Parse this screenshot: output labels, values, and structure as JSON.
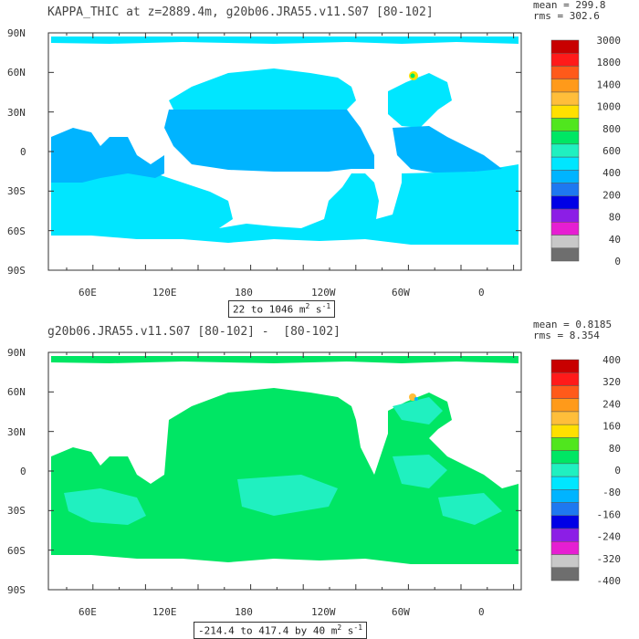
{
  "panels": [
    {
      "title": "KAPPA_THIC at z=2889.4m, g20b06.JRA55.v11.S07 [80-102]",
      "stats": {
        "mean": "mean = 299.8",
        "rms": "rms = 302.6"
      },
      "range_text": "22 to 1046 m",
      "range_units_sup": "2",
      "range_units_s": " s",
      "range_units_exp": "-1",
      "y_ticks": [
        "90N",
        "60N",
        "30N",
        "0",
        "30S",
        "60S",
        "90S"
      ],
      "x_ticks": [
        "60E",
        "120E",
        "180",
        "120W",
        "60W",
        "0"
      ],
      "colorbar_labels": [
        "3000",
        "1800",
        "1400",
        "1000",
        "800",
        "600",
        "400",
        "200",
        "80",
        "40",
        "0"
      ],
      "colorbar_colors": [
        "#c80000",
        "#ff1a1a",
        "#ff5a1a",
        "#ff9a1a",
        "#ffbe3a",
        "#ffe000",
        "#50e61e",
        "#00e664",
        "#20f0c0",
        "#00e6ff",
        "#00b4ff",
        "#1e78f0",
        "#0000e6",
        "#8c1ee6",
        "#e61ed2",
        "#c8c8c8",
        "#6e6e6e"
      ],
      "dominant_colors": {
        "ocean_main": "#00e6ff",
        "ocean_secondary": "#00b4ff",
        "contour": "#1e3c8c"
      }
    },
    {
      "title": "g20b06.JRA55.v11.S07 [80-102] -  [80-102]",
      "stats": {
        "mean": "mean = 0.8185",
        "rms": "rms = 8.354"
      },
      "range_text": "-214.4 to 417.4 by 40 m",
      "range_units_sup": "2",
      "range_units_s": " s",
      "range_units_exp": "-1",
      "y_ticks": [
        "90N",
        "60N",
        "30N",
        "0",
        "30S",
        "60S",
        "90S"
      ],
      "x_ticks": [
        "60E",
        "120E",
        "180",
        "120W",
        "60W",
        "0"
      ],
      "colorbar_labels": [
        "400",
        "320",
        "240",
        "160",
        "80",
        "0",
        "-80",
        "-160",
        "-240",
        "-320",
        "-400"
      ],
      "colorbar_colors": [
        "#c80000",
        "#ff1a1a",
        "#ff5a1a",
        "#ff9a1a",
        "#ffbe3a",
        "#ffe000",
        "#50e61e",
        "#00e664",
        "#20f0c0",
        "#00e6ff",
        "#00b4ff",
        "#1e78f0",
        "#0000e6",
        "#8c1ee6",
        "#e61ed2",
        "#c8c8c8",
        "#6e6e6e"
      ],
      "dominant_colors": {
        "ocean_main": "#00e664",
        "ocean_secondary": "#20f0c0"
      }
    }
  ]
}
